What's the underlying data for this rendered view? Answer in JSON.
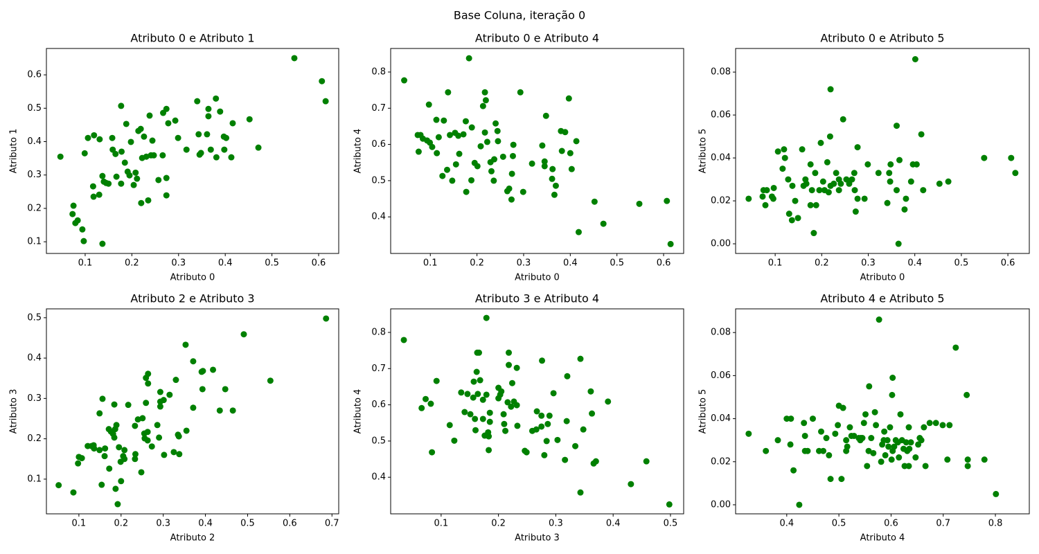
{
  "title": "Base Coluna, iteração 0",
  "chart_data": [
    {
      "type": "scatter",
      "title": "Atributo 0 e Atributo 1",
      "xlabel": "Atributo 0",
      "ylabel": "Atributo 1",
      "color": "#008000",
      "xlim": [
        0.017,
        0.643
      ],
      "ylim": [
        0.065,
        0.679
      ],
      "xticks": [
        0.1,
        0.2,
        0.3,
        0.4,
        0.5,
        0.6
      ],
      "yticks": [
        0.1,
        0.2,
        0.3,
        0.4,
        0.5,
        0.6
      ],
      "x": [
        0.047,
        0.075,
        0.073,
        0.079,
        0.084,
        0.094,
        0.097,
        0.137,
        0.099,
        0.106,
        0.119,
        0.117,
        0.118,
        0.13,
        0.131,
        0.137,
        0.14,
        0.145,
        0.15,
        0.158,
        0.159,
        0.165,
        0.167,
        0.177,
        0.178,
        0.177,
        0.185,
        0.188,
        0.191,
        0.195,
        0.198,
        0.204,
        0.208,
        0.211,
        0.214,
        0.219,
        0.222,
        0.22,
        0.226,
        0.231,
        0.235,
        0.238,
        0.241,
        0.244,
        0.247,
        0.257,
        0.266,
        0.267,
        0.274,
        0.274,
        0.274,
        0.278,
        0.293,
        0.299,
        0.317,
        0.34,
        0.343,
        0.345,
        0.348,
        0.361,
        0.364,
        0.364,
        0.369,
        0.38,
        0.381,
        0.389,
        0.397,
        0.402,
        0.398,
        0.413,
        0.416,
        0.452,
        0.471,
        0.548,
        0.607,
        0.615
      ],
      "values": [
        0.355,
        0.208,
        0.183,
        0.156,
        0.164,
        0.137,
        0.102,
        0.094,
        0.365,
        0.411,
        0.419,
        0.266,
        0.235,
        0.241,
        0.407,
        0.297,
        0.28,
        0.276,
        0.274,
        0.411,
        0.376,
        0.363,
        0.295,
        0.507,
        0.37,
        0.274,
        0.337,
        0.453,
        0.31,
        0.299,
        0.399,
        0.27,
        0.307,
        0.289,
        0.432,
        0.438,
        0.351,
        0.216,
        0.415,
        0.355,
        0.224,
        0.478,
        0.359,
        0.403,
        0.359,
        0.285,
        0.359,
        0.486,
        0.498,
        0.291,
        0.239,
        0.455,
        0.463,
        0.411,
        0.376,
        0.521,
        0.422,
        0.361,
        0.366,
        0.422,
        0.498,
        0.476,
        0.376,
        0.529,
        0.353,
        0.49,
        0.415,
        0.411,
        0.376,
        0.353,
        0.455,
        0.467,
        0.382,
        0.65,
        0.581,
        0.521
      ]
    },
    {
      "type": "scatter",
      "title": "Atributo 0 e Atributo 4",
      "xlabel": "Atributo 0",
      "ylabel": "Atributo 4",
      "color": "#008000",
      "xlim": [
        0.015,
        0.643
      ],
      "ylim": [
        0.299,
        0.865
      ],
      "xticks": [
        0.1,
        0.2,
        0.3,
        0.4,
        0.5,
        0.6
      ],
      "yticks": [
        0.4,
        0.5,
        0.6,
        0.7,
        0.8
      ],
      "x": [
        0.044,
        0.073,
        0.079,
        0.075,
        0.084,
        0.093,
        0.097,
        0.099,
        0.104,
        0.113,
        0.114,
        0.118,
        0.126,
        0.129,
        0.138,
        0.136,
        0.142,
        0.147,
        0.153,
        0.155,
        0.16,
        0.162,
        0.171,
        0.176,
        0.177,
        0.183,
        0.189,
        0.188,
        0.195,
        0.201,
        0.208,
        0.213,
        0.217,
        0.217,
        0.219,
        0.222,
        0.229,
        0.231,
        0.236,
        0.237,
        0.24,
        0.244,
        0.245,
        0.256,
        0.265,
        0.269,
        0.274,
        0.275,
        0.277,
        0.278,
        0.293,
        0.299,
        0.318,
        0.34,
        0.345,
        0.345,
        0.348,
        0.361,
        0.362,
        0.366,
        0.369,
        0.38,
        0.382,
        0.389,
        0.397,
        0.4,
        0.403,
        0.413,
        0.418,
        0.452,
        0.471,
        0.548,
        0.607,
        0.615
      ],
      "values": [
        0.777,
        0.626,
        0.626,
        0.58,
        0.616,
        0.611,
        0.71,
        0.605,
        0.593,
        0.668,
        0.576,
        0.62,
        0.513,
        0.666,
        0.744,
        0.53,
        0.626,
        0.5,
        0.632,
        0.545,
        0.624,
        0.574,
        0.628,
        0.664,
        0.469,
        0.838,
        0.647,
        0.501,
        0.549,
        0.54,
        0.595,
        0.706,
        0.633,
        0.744,
        0.722,
        0.607,
        0.551,
        0.526,
        0.5,
        0.559,
        0.658,
        0.637,
        0.609,
        0.566,
        0.471,
        0.478,
        0.448,
        0.519,
        0.568,
        0.599,
        0.744,
        0.469,
        0.547,
        0.597,
        0.553,
        0.54,
        0.679,
        0.505,
        0.532,
        0.461,
        0.486,
        0.637,
        0.582,
        0.634,
        0.727,
        0.576,
        0.532,
        0.609,
        0.358,
        0.442,
        0.381,
        0.436,
        0.444,
        0.325
      ]
    },
    {
      "type": "scatter",
      "title": "Atributo 0 e Atributo 5",
      "xlabel": "Atributo 0",
      "ylabel": "Atributo 5",
      "color": "#008000",
      "xlim": [
        0.015,
        0.646
      ],
      "ylim": [
        -0.0045,
        0.091
      ],
      "xticks": [
        0.1,
        0.2,
        0.3,
        0.4,
        0.5,
        0.6
      ],
      "yticks": [
        {
          "value": 0,
          "label": "0.00"
        },
        {
          "value": 0.02,
          "label": "0.02"
        },
        {
          "value": 0.04,
          "label": "0.04"
        },
        {
          "value": 0.06,
          "label": "0.06"
        },
        {
          "value": 0.08,
          "label": "0.08"
        }
      ],
      "x": [
        0.043,
        0.075,
        0.082,
        0.073,
        0.079,
        0.093,
        0.096,
        0.097,
        0.106,
        0.116,
        0.119,
        0.121,
        0.13,
        0.128,
        0.136,
        0.137,
        0.143,
        0.149,
        0.158,
        0.161,
        0.165,
        0.167,
        0.176,
        0.176,
        0.179,
        0.183,
        0.186,
        0.188,
        0.195,
        0.198,
        0.203,
        0.206,
        0.212,
        0.215,
        0.218,
        0.219,
        0.219,
        0.226,
        0.231,
        0.237,
        0.237,
        0.241,
        0.246,
        0.253,
        0.259,
        0.265,
        0.27,
        0.271,
        0.273,
        0.277,
        0.277,
        0.292,
        0.299,
        0.322,
        0.341,
        0.345,
        0.348,
        0.347,
        0.361,
        0.361,
        0.365,
        0.367,
        0.378,
        0.381,
        0.392,
        0.396,
        0.401,
        0.404,
        0.414,
        0.418,
        0.453,
        0.472,
        0.549,
        0.607,
        0.616
      ],
      "values": [
        0.021,
        0.025,
        0.025,
        0.022,
        0.018,
        0.022,
        0.021,
        0.026,
        0.043,
        0.035,
        0.044,
        0.04,
        0.014,
        0.03,
        0.011,
        0.027,
        0.02,
        0.012,
        0.044,
        0.027,
        0.03,
        0.028,
        0.018,
        0.037,
        0.025,
        0.005,
        0.033,
        0.018,
        0.025,
        0.047,
        0.029,
        0.025,
        0.038,
        0.024,
        0.05,
        0.072,
        0.027,
        0.028,
        0.033,
        0.025,
        0.03,
        0.028,
        0.058,
        0.03,
        0.028,
        0.03,
        0.033,
        0.025,
        0.015,
        0.045,
        0.021,
        0.021,
        0.037,
        0.033,
        0.019,
        0.033,
        0.037,
        0.029,
        0.055,
        0.025,
        0.0,
        0.039,
        0.016,
        0.021,
        0.029,
        0.037,
        0.086,
        0.037,
        0.051,
        0.025,
        0.028,
        0.029,
        0.04,
        0.04,
        0.033
      ]
    },
    {
      "type": "scatter",
      "title": "Atributo 2 e Atributo 3",
      "xlabel": "Atributo 2",
      "ylabel": "Atributo 3",
      "color": "#008000",
      "xlim": [
        0.023,
        0.716
      ],
      "ylim": [
        0.014,
        0.522
      ],
      "xticks": [
        0.1,
        0.2,
        0.3,
        0.4,
        0.5,
        0.6,
        0.7
      ],
      "yticks": [
        0.1,
        0.2,
        0.3,
        0.4,
        0.5
      ],
      "x": [
        0.052,
        0.087,
        0.098,
        0.1,
        0.107,
        0.121,
        0.13,
        0.136,
        0.135,
        0.149,
        0.149,
        0.154,
        0.156,
        0.161,
        0.162,
        0.171,
        0.172,
        0.176,
        0.181,
        0.184,
        0.184,
        0.186,
        0.187,
        0.189,
        0.192,
        0.195,
        0.199,
        0.2,
        0.205,
        0.208,
        0.208,
        0.217,
        0.233,
        0.234,
        0.233,
        0.24,
        0.248,
        0.251,
        0.255,
        0.256,
        0.259,
        0.259,
        0.263,
        0.263,
        0.264,
        0.264,
        0.273,
        0.286,
        0.29,
        0.293,
        0.293,
        0.293,
        0.301,
        0.302,
        0.315,
        0.325,
        0.33,
        0.335,
        0.338,
        0.337,
        0.353,
        0.355,
        0.371,
        0.371,
        0.391,
        0.393,
        0.394,
        0.418,
        0.434,
        0.447,
        0.465,
        0.491,
        0.554,
        0.686
      ],
      "values": [
        0.085,
        0.067,
        0.139,
        0.155,
        0.152,
        0.182,
        0.182,
        0.176,
        0.184,
        0.172,
        0.263,
        0.086,
        0.299,
        0.157,
        0.176,
        0.224,
        0.126,
        0.218,
        0.212,
        0.285,
        0.203,
        0.224,
        0.076,
        0.234,
        0.038,
        0.179,
        0.143,
        0.095,
        0.157,
        0.172,
        0.15,
        0.284,
        0.232,
        0.162,
        0.15,
        0.248,
        0.117,
        0.251,
        0.213,
        0.201,
        0.351,
        0.289,
        0.196,
        0.217,
        0.361,
        0.337,
        0.181,
        0.234,
        0.203,
        0.292,
        0.28,
        0.316,
        0.296,
        0.16,
        0.309,
        0.167,
        0.346,
        0.21,
        0.162,
        0.206,
        0.433,
        0.22,
        0.392,
        0.277,
        0.366,
        0.323,
        0.368,
        0.371,
        0.27,
        0.323,
        0.27,
        0.459,
        0.344,
        0.498
      ]
    },
    {
      "type": "scatter",
      "title": "Atributo 3 e Atributo 4",
      "xlabel": "Atributo 3",
      "ylabel": "Atributo 4",
      "color": "#008000",
      "xlim": [
        0.012,
        0.523
      ],
      "ylim": [
        0.299,
        0.865
      ],
      "xticks": [
        0.1,
        0.2,
        0.3,
        0.4,
        0.5
      ],
      "yticks": [
        0.4,
        0.5,
        0.6,
        0.7,
        0.8
      ],
      "x": [
        0.035,
        0.066,
        0.073,
        0.082,
        0.084,
        0.092,
        0.115,
        0.123,
        0.135,
        0.141,
        0.146,
        0.151,
        0.156,
        0.157,
        0.159,
        0.16,
        0.162,
        0.163,
        0.166,
        0.164,
        0.168,
        0.173,
        0.173,
        0.176,
        0.179,
        0.179,
        0.182,
        0.183,
        0.183,
        0.185,
        0.185,
        0.2,
        0.2,
        0.203,
        0.205,
        0.209,
        0.21,
        0.212,
        0.216,
        0.218,
        0.218,
        0.222,
        0.224,
        0.227,
        0.232,
        0.232,
        0.233,
        0.246,
        0.249,
        0.259,
        0.266,
        0.267,
        0.275,
        0.276,
        0.275,
        0.28,
        0.284,
        0.286,
        0.289,
        0.296,
        0.303,
        0.316,
        0.319,
        0.32,
        0.334,
        0.343,
        0.343,
        0.348,
        0.361,
        0.363,
        0.366,
        0.37,
        0.391,
        0.431,
        0.458,
        0.498
      ],
      "values": [
        0.779,
        0.591,
        0.616,
        0.603,
        0.469,
        0.666,
        0.544,
        0.501,
        0.634,
        0.58,
        0.63,
        0.574,
        0.62,
        0.664,
        0.561,
        0.53,
        0.691,
        0.744,
        0.744,
        0.63,
        0.668,
        0.614,
        0.561,
        0.515,
        0.628,
        0.84,
        0.524,
        0.513,
        0.475,
        0.578,
        0.553,
        0.618,
        0.647,
        0.628,
        0.637,
        0.574,
        0.547,
        0.528,
        0.607,
        0.744,
        0.71,
        0.595,
        0.66,
        0.609,
        0.702,
        0.599,
        0.542,
        0.473,
        0.469,
        0.528,
        0.532,
        0.582,
        0.57,
        0.722,
        0.54,
        0.461,
        0.5,
        0.547,
        0.57,
        0.632,
        0.503,
        0.448,
        0.555,
        0.679,
        0.486,
        0.727,
        0.358,
        0.532,
        0.637,
        0.576,
        0.438,
        0.444,
        0.609,
        0.381,
        0.444,
        0.325
      ]
    },
    {
      "type": "scatter",
      "title": "Atributo 4 e Atributo 5",
      "xlabel": "Atributo 4",
      "ylabel": "Atributo 5",
      "color": "#008000",
      "xlim": [
        0.302,
        0.865
      ],
      "ylim": [
        -0.0042,
        0.091
      ],
      "xticks": [
        0.4,
        0.5,
        0.6,
        0.7,
        0.8
      ],
      "yticks": [
        {
          "value": 0,
          "label": "0.00"
        },
        {
          "value": 0.02,
          "label": "0.02"
        },
        {
          "value": 0.04,
          "label": "0.04"
        },
        {
          "value": 0.06,
          "label": "0.06"
        },
        {
          "value": 0.08,
          "label": "0.08"
        }
      ],
      "x": [
        0.327,
        0.36,
        0.383,
        0.4,
        0.408,
        0.407,
        0.413,
        0.424,
        0.433,
        0.435,
        0.435,
        0.44,
        0.45,
        0.462,
        0.466,
        0.47,
        0.476,
        0.481,
        0.484,
        0.493,
        0.5,
        0.498,
        0.505,
        0.508,
        0.514,
        0.516,
        0.514,
        0.521,
        0.524,
        0.529,
        0.538,
        0.541,
        0.542,
        0.545,
        0.548,
        0.551,
        0.554,
        0.557,
        0.558,
        0.562,
        0.566,
        0.569,
        0.571,
        0.577,
        0.581,
        0.583,
        0.586,
        0.587,
        0.589,
        0.593,
        0.595,
        0.598,
        0.601,
        0.602,
        0.603,
        0.603,
        0.606,
        0.609,
        0.613,
        0.615,
        0.618,
        0.621,
        0.624,
        0.626,
        0.629,
        0.631,
        0.634,
        0.634,
        0.635,
        0.638,
        0.647,
        0.652,
        0.655,
        0.658,
        0.663,
        0.666,
        0.674,
        0.686,
        0.699,
        0.708,
        0.712,
        0.724,
        0.745,
        0.747,
        0.747,
        0.779,
        0.801
      ],
      "values": [
        0.033,
        0.025,
        0.03,
        0.04,
        0.04,
        0.028,
        0.016,
        0.0,
        0.038,
        0.032,
        0.025,
        0.025,
        0.04,
        0.025,
        0.034,
        0.025,
        0.031,
        0.023,
        0.012,
        0.033,
        0.046,
        0.037,
        0.012,
        0.045,
        0.03,
        0.027,
        0.025,
        0.036,
        0.032,
        0.032,
        0.031,
        0.03,
        0.031,
        0.031,
        0.038,
        0.042,
        0.018,
        0.025,
        0.055,
        0.031,
        0.024,
        0.043,
        0.037,
        0.086,
        0.02,
        0.028,
        0.03,
        0.034,
        0.023,
        0.03,
        0.027,
        0.036,
        0.021,
        0.051,
        0.059,
        0.025,
        0.027,
        0.03,
        0.029,
        0.022,
        0.042,
        0.03,
        0.026,
        0.018,
        0.029,
        0.025,
        0.036,
        0.018,
        0.026,
        0.029,
        0.022,
        0.028,
        0.031,
        0.03,
        0.036,
        0.018,
        0.038,
        0.038,
        0.037,
        0.021,
        0.037,
        0.073,
        0.051,
        0.021,
        0.018,
        0.021,
        0.005
      ]
    }
  ]
}
